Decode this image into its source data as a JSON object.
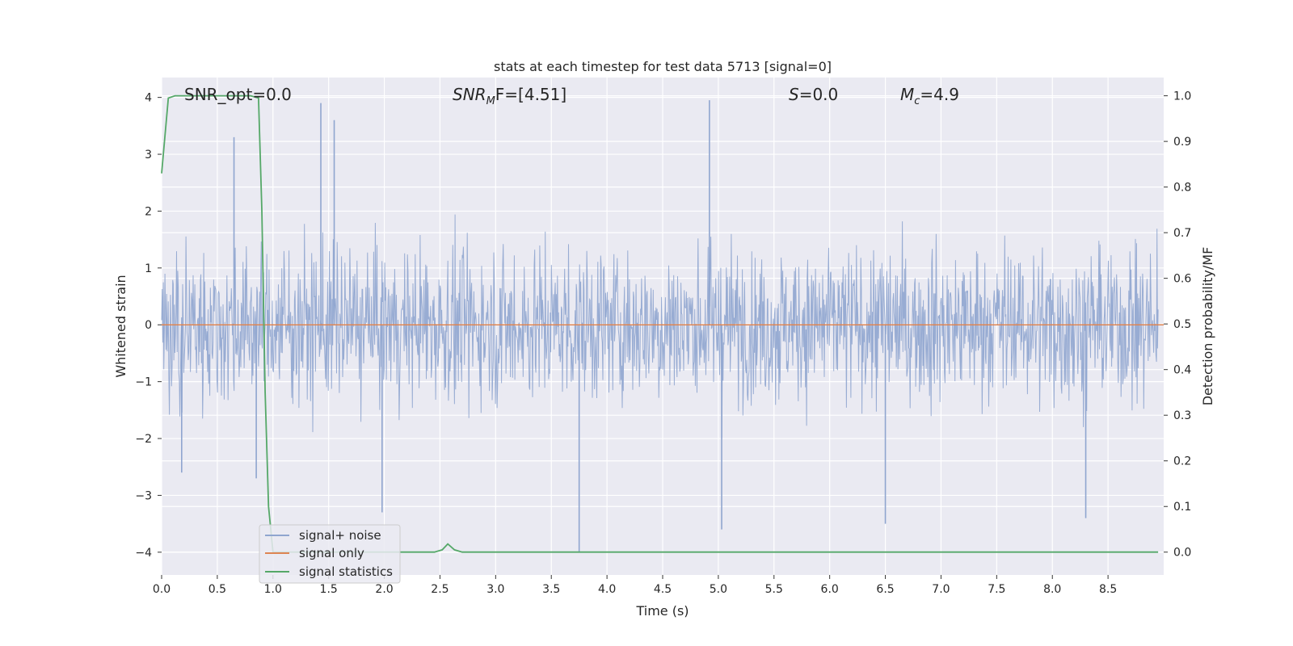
{
  "chart_data": {
    "type": "line",
    "title": "stats at each timestep for test data 5713 [signal=0]",
    "xlabel": "Time (s)",
    "ylabel_left": "Whitened strain",
    "ylabel_right": "Detection probability/MF",
    "xlim": [
      0.0,
      9.0
    ],
    "ylim_left": [
      -4.4,
      4.35
    ],
    "ylim_right": [
      -0.05,
      1.04
    ],
    "x_ticks": [
      "0.0",
      "0.5",
      "1.0",
      "1.5",
      "2.0",
      "2.5",
      "3.0",
      "3.5",
      "4.0",
      "4.5",
      "5.0",
      "5.5",
      "6.0",
      "6.5",
      "7.0",
      "7.5",
      "8.0",
      "8.5"
    ],
    "y_ticks_left": [
      "4",
      "3",
      "2",
      "1",
      "0",
      "−1",
      "−2",
      "−3",
      "−4"
    ],
    "y_ticks_right": [
      "1.0",
      "0.9",
      "0.8",
      "0.7",
      "0.6",
      "0.5",
      "0.4",
      "0.3",
      "0.2",
      "0.1",
      "0.0"
    ],
    "grid": true,
    "legend_position": "lower-left",
    "annotations": {
      "snr_opt": "SNR_opt=0.0",
      "snr_mf_base": "SNR",
      "snr_mf_sub": "M",
      "snr_mf_rest": "F=[4.51]",
      "s_label": "S",
      "s_value": "=0.0",
      "mc_base": "M",
      "mc_sub": "c",
      "mc_value": "=4.9"
    },
    "series": [
      {
        "name": "signal+ noise",
        "axis": "left",
        "color": "#8fa5cf",
        "description_note": "dense noise band",
        "amplitude_approx": 2.0,
        "peak_points": [
          {
            "x": 0.65,
            "y": 3.3
          },
          {
            "x": 1.43,
            "y": 3.9
          },
          {
            "x": 1.55,
            "y": 3.6
          },
          {
            "x": 3.75,
            "y": -4.0
          },
          {
            "x": 4.92,
            "y": 3.95
          },
          {
            "x": 5.03,
            "y": -3.6
          },
          {
            "x": 6.5,
            "y": -3.5
          },
          {
            "x": 8.3,
            "y": -3.4
          },
          {
            "x": 1.98,
            "y": -3.3
          },
          {
            "x": 0.85,
            "y": -2.7
          },
          {
            "x": 0.18,
            "y": -2.6
          }
        ]
      },
      {
        "name": "signal only",
        "axis": "left",
        "color": "#dd8452",
        "x": [
          0.0,
          9.0
        ],
        "y": [
          0.0,
          0.0
        ]
      },
      {
        "name": "signal statistics",
        "axis": "right",
        "color": "#55a868",
        "x": [
          0.0,
          0.06,
          0.12,
          0.2,
          0.4,
          0.6,
          0.8,
          0.87,
          0.9,
          0.93,
          0.96,
          1.0,
          1.1,
          1.5,
          2.0,
          2.45,
          2.52,
          2.57,
          2.63,
          2.7,
          3.0,
          4.0,
          5.0,
          6.0,
          7.0,
          8.0,
          8.95
        ],
        "y": [
          0.83,
          0.995,
          1.0,
          1.0,
          1.0,
          1.0,
          1.0,
          0.995,
          0.75,
          0.35,
          0.1,
          0.0,
          0.0,
          0.0,
          0.0,
          0.0,
          0.005,
          0.018,
          0.005,
          0.0,
          0.0,
          0.0,
          0.0,
          0.0,
          0.0,
          0.0,
          0.0
        ]
      }
    ]
  }
}
